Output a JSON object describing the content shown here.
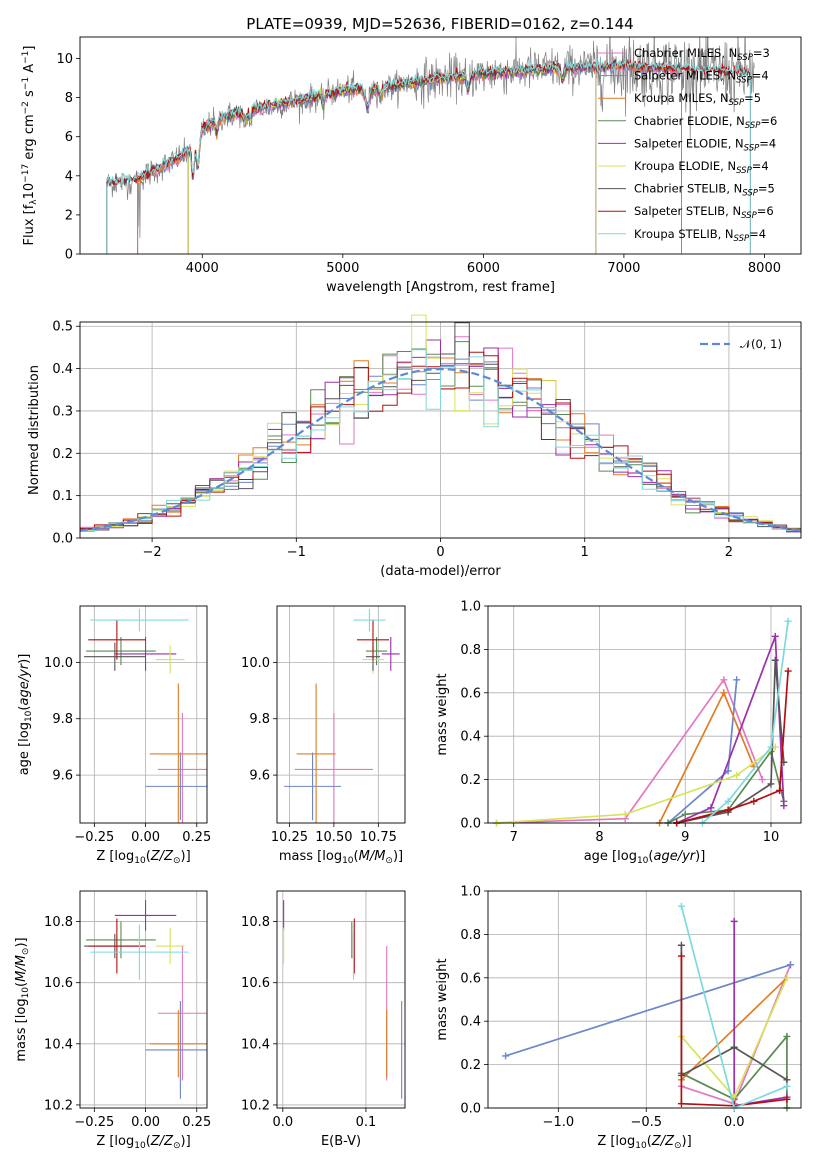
{
  "figure": {
    "title": "PLATE=0939, MJD=52636, FIBERID=0162, z=0.144"
  },
  "colors": {
    "Chabrier MILES": "#e377c2",
    "Salpeter MILES": "#6b86c9",
    "Kroupa MILES": "#e07c24",
    "Chabrier ELODIE": "#5a8a55",
    "Salpeter ELODIE": "#9b2fae",
    "Kroupa ELODIE": "#d7e35a",
    "Chabrier STELIB": "#555555",
    "Salpeter STELIB": "#b30f12",
    "Kroupa STELIB": "#7fd9dc",
    "data": "#808080",
    "normal": "#5b8bd6"
  },
  "chart_data": [
    {
      "id": "spectrum",
      "type": "line",
      "xlabel": "wavelength [Angstrom, rest frame]",
      "ylabel": "Flux [f_λ10^-17 erg cm^-2 s^-1 A^-1]",
      "xlim": [
        3130,
        8260
      ],
      "ylim": [
        0,
        11.1
      ],
      "xticks": [
        4000,
        5000,
        6000,
        7000,
        8000
      ],
      "yticks": [
        0,
        2,
        4,
        6,
        8,
        10
      ],
      "grid": false,
      "legend_position": "top-right",
      "legend": [
        {
          "label": "Chabrier MILES, N",
          "sub": "SSP",
          "suffix": "=3",
          "key": "Chabrier MILES"
        },
        {
          "label": "Salpeter MILES, N",
          "sub": "SSP",
          "suffix": "=4",
          "key": "Salpeter MILES"
        },
        {
          "label": "Kroupa MILES, N",
          "sub": "SSP",
          "suffix": "=5",
          "key": "Kroupa MILES"
        },
        {
          "label": "Chabrier ELODIE, N",
          "sub": "SSP",
          "suffix": "=6",
          "key": "Chabrier ELODIE"
        },
        {
          "label": "Salpeter ELODIE, N",
          "sub": "SSP",
          "suffix": "=4",
          "key": "Salpeter ELODIE"
        },
        {
          "label": "Kroupa ELODIE, N",
          "sub": "SSP",
          "suffix": "=4",
          "key": "Kroupa ELODIE"
        },
        {
          "label": "Chabrier STELIB, N",
          "sub": "SSP",
          "suffix": "=5",
          "key": "Chabrier STELIB"
        },
        {
          "label": "Salpeter STELIB, N",
          "sub": "SSP",
          "suffix": "=6",
          "key": "Salpeter STELIB"
        },
        {
          "label": "Kroupa STELIB, N",
          "sub": "SSP",
          "suffix": "=4",
          "key": "Kroupa STELIB"
        }
      ],
      "continuum": {
        "x": [
          3320,
          3500,
          3700,
          3900,
          4000,
          4100,
          4300,
          4500,
          4800,
          5000,
          5300,
          5600,
          6000,
          6500,
          7000,
          7500,
          7900
        ],
        "y": [
          3.6,
          3.7,
          4.4,
          5.2,
          6.3,
          6.9,
          7.3,
          7.6,
          8.0,
          8.4,
          8.5,
          8.9,
          9.2,
          9.5,
          9.6,
          9.4,
          9.2
        ]
      }
    },
    {
      "id": "residuals",
      "type": "line",
      "xlabel": "(data-model)/error",
      "ylabel": "Normed distribution",
      "xlim": [
        -2.5,
        2.5
      ],
      "ylim": [
        0,
        0.51
      ],
      "xticks": [
        -2,
        -1,
        0,
        1,
        2
      ],
      "yticks": [
        0.0,
        0.1,
        0.2,
        0.3,
        0.4,
        0.5
      ],
      "grid": true,
      "legend_position": "top-right",
      "normal_label": "𝒩(0, 1)",
      "bin_width": 0.1
    },
    {
      "id": "age_vs_Z",
      "type": "scatter",
      "xlabel": "Z [log10(Z/Z⊙)]",
      "ylabel": "age  [log10(age/yr)]",
      "xlim": [
        -0.32,
        0.3
      ],
      "ylim": [
        9.43,
        10.2
      ],
      "xticks": [
        -0.25,
        0.0,
        0.25
      ],
      "yticks": [
        9.6,
        9.8,
        10.0
      ],
      "grid": true
    },
    {
      "id": "age_vs_mass",
      "type": "scatter",
      "xlabel": "mass [log10(M/M⊙)]",
      "ylabel": "",
      "xlim": [
        10.18,
        10.9
      ],
      "ylim": [
        9.43,
        10.2
      ],
      "xticks": [
        10.25,
        10.5,
        10.75
      ],
      "yticks": [
        9.6,
        9.8,
        10.0
      ],
      "grid": true
    },
    {
      "id": "weight_vs_age",
      "type": "line",
      "xlabel": "age  [log10(age/yr)]",
      "ylabel": "mass weight",
      "xlim": [
        6.7,
        10.35
      ],
      "ylim": [
        0,
        1.0
      ],
      "xticks": [
        7,
        8,
        9,
        10
      ],
      "yticks": [
        0.0,
        0.2,
        0.4,
        0.6,
        0.8,
        1.0
      ],
      "grid": true
    },
    {
      "id": "mass_vs_Z",
      "type": "scatter",
      "xlabel": "Z [log10(Z/Z⊙)]",
      "ylabel": "mass [log10(M/M⊙)]",
      "xlim": [
        -0.32,
        0.3
      ],
      "ylim": [
        10.19,
        10.9
      ],
      "xticks": [
        -0.25,
        0.0,
        0.25
      ],
      "yticks": [
        10.2,
        10.4,
        10.6,
        10.8
      ],
      "grid": true
    },
    {
      "id": "mass_vs_ebv",
      "type": "scatter",
      "xlabel": "E(B-V)",
      "ylabel": "",
      "xlim": [
        -0.007,
        0.147
      ],
      "ylim": [
        10.19,
        10.9
      ],
      "xticks": [
        0.0,
        0.1
      ],
      "yticks": [
        10.2,
        10.4,
        10.6,
        10.8
      ],
      "grid": true
    },
    {
      "id": "weight_vs_Z",
      "type": "line",
      "xlabel": "Z [log10(Z/Z⊙)]",
      "ylabel": "mass weight",
      "xlim": [
        -1.4,
        0.38
      ],
      "ylim": [
        0,
        1.0
      ],
      "xticks": [
        -1.0,
        -0.5,
        0.0
      ],
      "yticks": [
        0.0,
        0.2,
        0.4,
        0.6,
        0.8,
        1.0
      ],
      "grid": true
    }
  ],
  "fits": [
    {
      "key": "Chabrier MILES",
      "Z": 0.18,
      "Zerr": 0.12,
      "age": 9.62,
      "ageErr": 0.2,
      "mass": 10.5,
      "massErr": 0.22,
      "ebv": 0.125,
      "ebvErr": 0.0
    },
    {
      "key": "Salpeter MILES",
      "Z": 0.17,
      "Zerr": 0.17,
      "age": 9.56,
      "ageErr": 0.12,
      "mass": 10.38,
      "massErr": 0.16,
      "ebv": 0.143,
      "ebvErr": 0.0
    },
    {
      "key": "Kroupa MILES",
      "Z": 0.16,
      "Zerr": 0.14,
      "age": 9.675,
      "ageErr": 0.25,
      "mass": 10.4,
      "massErr": 0.11,
      "ebv": 0.125,
      "ebvErr": 0.0
    },
    {
      "key": "Chabrier ELODIE",
      "Z": -0.12,
      "Zerr": 0.17,
      "age": 10.04,
      "ageErr": 0.05,
      "mass": 10.74,
      "massErr": 0.06,
      "ebv": 0.083,
      "ebvErr": 0.0
    },
    {
      "key": "Salpeter ELODIE",
      "Z": 0.0,
      "Zerr": 0.15,
      "age": 10.03,
      "ageErr": 0.06,
      "mass": 10.82,
      "massErr": 0.05,
      "ebv": 0.001,
      "ebvErr": 0.0
    },
    {
      "key": "Kroupa ELODIE",
      "Z": 0.12,
      "Zerr": 0.07,
      "age": 10.01,
      "ageErr": 0.05,
      "mass": 10.72,
      "massErr": 0.06,
      "ebv": 0.001,
      "ebvErr": 0.0
    },
    {
      "key": "Chabrier STELIB",
      "Z": -0.15,
      "Zerr": 0.15,
      "age": 10.02,
      "ageErr": 0.05,
      "mass": 10.72,
      "massErr": 0.04,
      "ebv": 0.085,
      "ebvErr": 0.0
    },
    {
      "key": "Salpeter STELIB",
      "Z": -0.14,
      "Zerr": 0.14,
      "age": 10.08,
      "ageErr": 0.07,
      "mass": 10.72,
      "massErr": 0.09,
      "ebv": 0.086,
      "ebvErr": 0.0
    },
    {
      "key": "Kroupa STELIB",
      "Z": -0.03,
      "Zerr": 0.24,
      "age": 10.15,
      "ageErr": 0.04,
      "mass": 10.7,
      "massErr": 0.09,
      "ebv": 0.085,
      "ebvErr": 0.0
    }
  ],
  "weights_age": [
    {
      "key": "Chabrier MILES",
      "age": [
        6.8,
        8.3,
        9.45,
        9.9
      ],
      "w": [
        0.0,
        0.02,
        0.66,
        0.2
      ]
    },
    {
      "key": "Salpeter MILES",
      "age": [
        8.8,
        9.5,
        9.6
      ],
      "w": [
        0.0,
        0.24,
        0.66
      ]
    },
    {
      "key": "Kroupa MILES",
      "age": [
        8.7,
        9.45,
        9.8
      ],
      "w": [
        0.0,
        0.6,
        0.26
      ]
    },
    {
      "key": "Chabrier ELODIE",
      "age": [
        8.8,
        9.0,
        9.5,
        10.0,
        10.15
      ],
      "w": [
        0.0,
        0.04,
        0.06,
        0.33,
        0.1
      ]
    },
    {
      "key": "Salpeter ELODIE",
      "age": [
        8.9,
        9.3,
        10.05,
        10.15
      ],
      "w": [
        0.0,
        0.07,
        0.86,
        0.08
      ]
    },
    {
      "key": "Kroupa ELODIE",
      "age": [
        6.8,
        8.3,
        9.6,
        10.05
      ],
      "w": [
        0.0,
        0.04,
        0.22,
        0.35
      ]
    },
    {
      "key": "Chabrier STELIB",
      "age": [
        8.9,
        9.5,
        10.0,
        10.05,
        10.15
      ],
      "w": [
        0.0,
        0.05,
        0.18,
        0.75,
        0.28
      ]
    },
    {
      "key": "Salpeter STELIB",
      "age": [
        8.9,
        9.5,
        9.8,
        10.1,
        10.2
      ],
      "w": [
        0.0,
        0.06,
        0.1,
        0.15,
        0.7
      ]
    },
    {
      "key": "Kroupa STELIB",
      "age": [
        9.2,
        9.5,
        10.0,
        10.2
      ],
      "w": [
        0.0,
        0.1,
        0.35,
        0.93
      ]
    }
  ],
  "weights_Z": [
    {
      "key": "Chabrier MILES",
      "Z": [
        -0.3,
        0.0,
        0.32
      ],
      "w": [
        0.1,
        0.02,
        0.66
      ]
    },
    {
      "key": "Salpeter MILES",
      "Z": [
        -1.3,
        0.32
      ],
      "w": [
        0.24,
        0.66
      ]
    },
    {
      "key": "Kroupa MILES",
      "Z": [
        -0.3,
        0.3
      ],
      "w": [
        0.13,
        0.6
      ]
    },
    {
      "key": "Chabrier ELODIE",
      "Z": [
        -0.3,
        0.0,
        0.3,
        0.3
      ],
      "w": [
        0.16,
        0.04,
        0.33,
        0.0
      ]
    },
    {
      "key": "Salpeter ELODIE",
      "Z": [
        0.0,
        0.0,
        0.3
      ],
      "w": [
        0.86,
        0.01,
        0.05
      ]
    },
    {
      "key": "Kroupa ELODIE",
      "Z": [
        -0.3,
        0.0,
        0.3
      ],
      "w": [
        0.33,
        0.05,
        0.6
      ]
    },
    {
      "key": "Chabrier STELIB",
      "Z": [
        -0.3,
        -0.3,
        0.0,
        0.3
      ],
      "w": [
        0.75,
        0.15,
        0.28,
        0.13
      ]
    },
    {
      "key": "Salpeter STELIB",
      "Z": [
        -0.3,
        -0.3,
        0.0,
        0.3
      ],
      "w": [
        0.7,
        0.02,
        0.01,
        0.04
      ]
    },
    {
      "key": "Kroupa STELIB",
      "Z": [
        -0.3,
        0.0,
        0.3
      ],
      "w": [
        0.93,
        0.0,
        0.1
      ]
    }
  ]
}
